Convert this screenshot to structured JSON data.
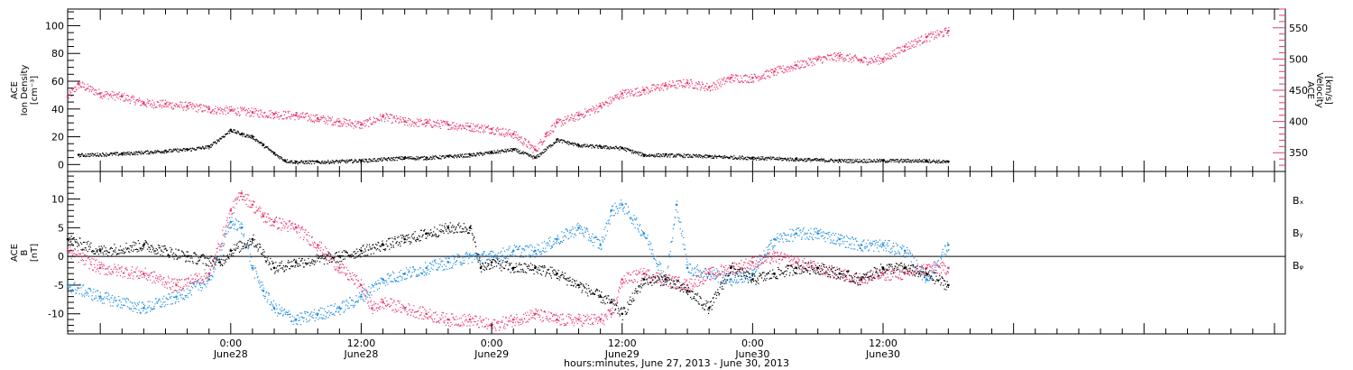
{
  "colors": {
    "black": "#000000",
    "pink": "#e8386b",
    "blue": "#1f8de0"
  },
  "x_axis": {
    "label": "hours:minutes, June 27, 2013 - June 30, 2013",
    "range_hours": [
      -15,
      97
    ],
    "ticks": [
      {
        "h": 0,
        "time": "0:00",
        "date": "June28"
      },
      {
        "h": 12,
        "time": "12:00",
        "date": "June28"
      },
      {
        "h": 24,
        "time": "0:00",
        "date": "June29"
      },
      {
        "h": 36,
        "time": "12:00",
        "date": "June29"
      },
      {
        "h": 48,
        "time": "0:00",
        "date": "June30"
      },
      {
        "h": 60,
        "time": "12:00",
        "date": "June30"
      }
    ]
  },
  "chart_data": [
    {
      "type": "scatter",
      "title": "",
      "ylabel_left": [
        "ACE",
        "Ion Density",
        "[cm⁻³]"
      ],
      "ylabel_right": [
        "ACE",
        "Velocity",
        "[km/s]"
      ],
      "ylim_left": [
        -5,
        112
      ],
      "yticks_left": [
        "0",
        "20",
        "40",
        "60",
        "80",
        "100"
      ],
      "ylim_right": [
        320,
        580
      ],
      "yticks_right": [
        "350",
        "400",
        "450",
        "500",
        "550"
      ],
      "series": [
        {
          "axis": "left",
          "color": "#000000",
          "x": [
            -14,
            -10,
            -6,
            -4,
            -2,
            0,
            1,
            2,
            3,
            4,
            5,
            6,
            8,
            12,
            16,
            18,
            20,
            22,
            24,
            26,
            28,
            30,
            32,
            34,
            36,
            38,
            40,
            44,
            48,
            52,
            56,
            60,
            64,
            66
          ],
          "y": [
            7,
            8,
            10,
            11,
            13,
            25,
            22,
            20,
            14,
            8,
            3,
            2,
            2,
            3,
            5,
            5,
            6,
            7,
            9,
            11,
            5,
            18,
            14,
            13,
            12,
            7,
            7,
            6,
            5,
            4,
            3,
            3,
            3,
            2
          ]
        },
        {
          "axis": "right",
          "color": "#e8386b",
          "x": [
            -15,
            -14,
            -12,
            -10,
            -8,
            -6,
            -4,
            -2,
            0,
            2,
            4,
            6,
            8,
            10,
            12,
            14,
            16,
            18,
            20,
            22,
            24,
            26,
            28,
            29,
            30,
            32,
            34,
            36,
            38,
            40,
            42,
            44,
            46,
            48,
            50,
            52,
            54,
            56,
            58,
            60,
            62,
            64,
            66
          ],
          "y": [
            440,
            460,
            445,
            440,
            430,
            428,
            425,
            420,
            418,
            415,
            412,
            410,
            405,
            400,
            395,
            408,
            400,
            398,
            395,
            392,
            388,
            380,
            355,
            380,
            398,
            410,
            425,
            445,
            450,
            458,
            462,
            455,
            470,
            470,
            480,
            490,
            500,
            505,
            498,
            500,
            520,
            535,
            545
          ]
        }
      ]
    },
    {
      "type": "scatter",
      "title": "",
      "ylabel_left": [
        "ACE",
        "B",
        "[nT]"
      ],
      "ylim": [
        -13.5,
        14.8
      ],
      "yticks": [
        "-10",
        "-5",
        "0",
        "5",
        "10"
      ],
      "legend": {
        "placement": "right",
        "entries": [
          "Bₓ",
          "Bᵧ",
          "Bᵩ"
        ]
      },
      "series": [
        {
          "name": "Bx",
          "color": "#000000",
          "x": [
            -15,
            -12,
            -8,
            -4,
            -1,
            0,
            2,
            4,
            6,
            10,
            12,
            14,
            16,
            18,
            20,
            22,
            23,
            24,
            26,
            28,
            30,
            32,
            34,
            35,
            36,
            38,
            40,
            42,
            44,
            46,
            48,
            50,
            52,
            54,
            56,
            58,
            60,
            62,
            64,
            66
          ],
          "y": [
            3,
            1,
            2,
            0,
            -1,
            1,
            3,
            -2,
            -1,
            0,
            1,
            2,
            3,
            4,
            5,
            5,
            -2,
            -1,
            -2,
            -2,
            -3,
            -5,
            -7,
            -8,
            -10,
            -4,
            -4,
            -6,
            -9,
            -2,
            -4,
            -3,
            -2,
            -2,
            -3,
            -4,
            -2,
            -2,
            -3,
            -5
          ]
        },
        {
          "name": "By",
          "color": "#1f8de0",
          "x": [
            -15,
            -12,
            -8,
            -5,
            -2,
            0,
            1,
            2,
            3,
            4,
            6,
            8,
            10,
            12,
            14,
            16,
            18,
            20,
            22,
            24,
            26,
            28,
            30,
            32,
            34,
            35,
            36,
            38,
            40,
            41,
            42,
            44,
            46,
            48,
            50,
            52,
            54,
            56,
            58,
            60,
            62,
            64,
            66
          ],
          "y": [
            -5,
            -7,
            -9,
            -7,
            -4,
            6,
            5,
            -2,
            -6,
            -9,
            -11,
            -10,
            -9,
            -7,
            -4,
            -3,
            -2,
            -1,
            0,
            0,
            1,
            1,
            3,
            5,
            2,
            8,
            9,
            4,
            -4,
            9,
            -2,
            -3,
            -4,
            -3,
            3,
            4,
            4,
            3,
            2,
            2,
            1,
            -4,
            2
          ]
        },
        {
          "name": "Bz",
          "color": "#e8386b",
          "x": [
            -15,
            -12,
            -8,
            -5,
            -2,
            0,
            1,
            2,
            3,
            4,
            6,
            8,
            10,
            12,
            13,
            14,
            16,
            18,
            20,
            22,
            24,
            26,
            28,
            30,
            32,
            34,
            35,
            36,
            38,
            40,
            42,
            44,
            46,
            48,
            50,
            52,
            54,
            56,
            58,
            60,
            62,
            64,
            66
          ],
          "y": [
            1,
            -2,
            -3,
            -5,
            -3,
            8,
            11,
            9,
            7,
            6,
            5,
            2,
            -2,
            -5,
            -9,
            -8,
            -9,
            -10,
            -11,
            -11,
            -12,
            -11,
            -10,
            -11,
            -11,
            -11,
            -10,
            -4,
            -3,
            -4,
            -5,
            -3,
            -2,
            -1,
            0,
            -1,
            -2,
            -3,
            -4,
            -3,
            -3,
            -2,
            -2
          ]
        }
      ]
    }
  ]
}
